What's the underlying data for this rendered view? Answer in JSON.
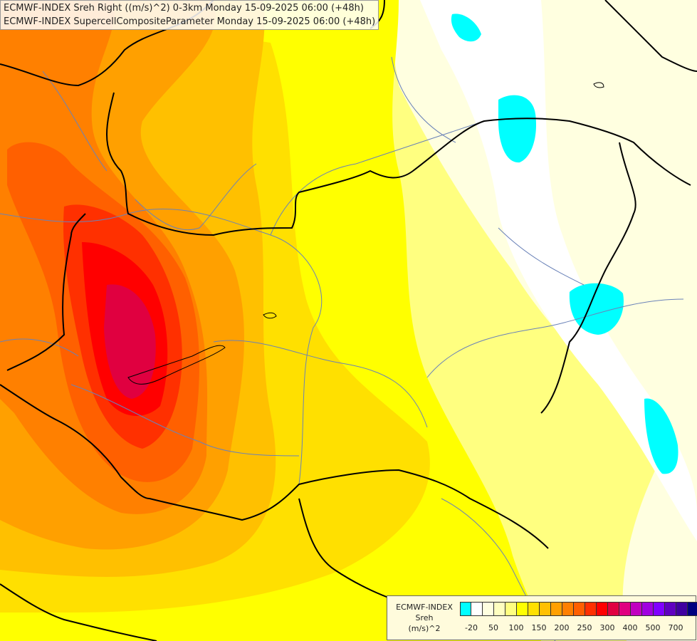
{
  "titles": {
    "line1": "ECMWF-INDEX Sreh Right ((m/s)^2) 0-3km Monday 15-09-2025 06:00 (+48h)",
    "line2": "ECMWF-INDEX SupercellCompositeParameter Monday 15-09-2025 06:00 (+48h)"
  },
  "legend": {
    "line1": "ECMWF-INDEX",
    "line2": "Sreh",
    "line3": "(m/s)^2",
    "colors": [
      "#00ffff",
      "#ffffff",
      "#ffffe0",
      "#ffffc0",
      "#ffff80",
      "#ffff00",
      "#ffe000",
      "#ffc000",
      "#ffa000",
      "#ff8000",
      "#ff6000",
      "#ff3000",
      "#ff0000",
      "#e00040",
      "#e00080",
      "#c000c0",
      "#a000e0",
      "#8000ff",
      "#6000c0",
      "#4000a0",
      "#000080"
    ],
    "tick_labels": [
      "-20",
      "50",
      "100",
      "150",
      "200",
      "250",
      "300",
      "400",
      "500",
      "700"
    ]
  },
  "map": {
    "colors": {
      "field_base": "#ffff80",
      "low_wind": "#ffffe0",
      "negative": "#00ffff",
      "border": "#000000",
      "river": "#6a82b8"
    }
  }
}
